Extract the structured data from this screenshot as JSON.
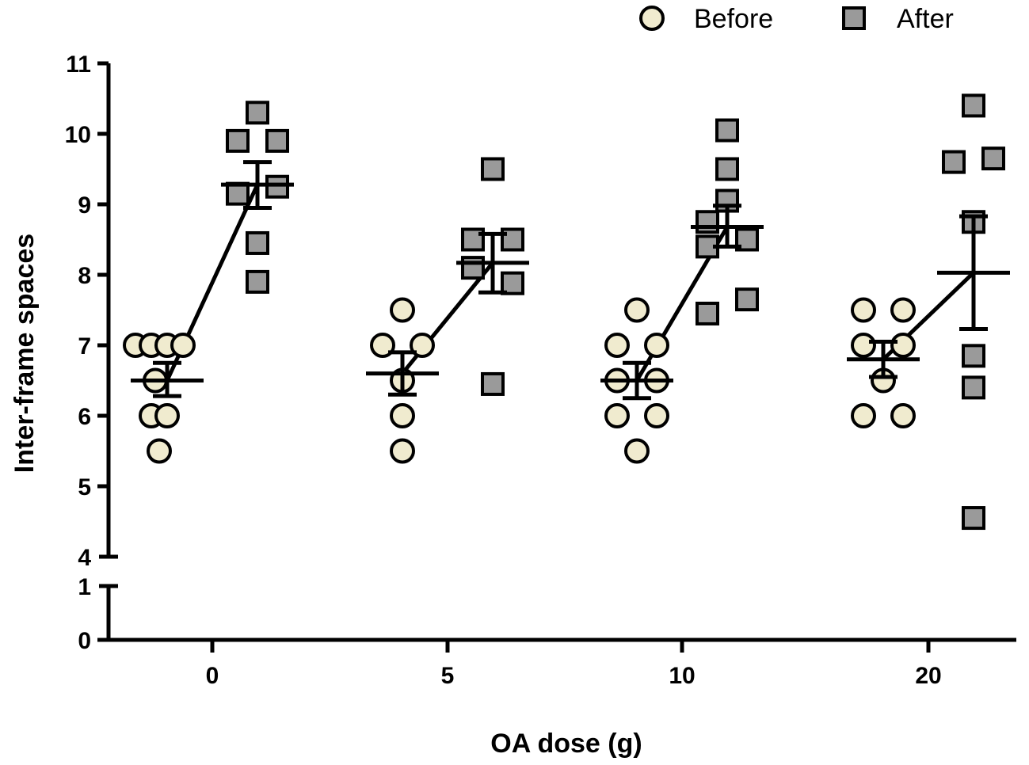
{
  "chart_data": {
    "type": "scatter",
    "xlabel": "OA dose (g)",
    "ylabel": "Inter-frame spaces",
    "categories": [
      "0",
      "5",
      "10",
      "20"
    ],
    "y_ticks_lower": [
      "0",
      "1"
    ],
    "y_ticks_upper": [
      "4",
      "5",
      "6",
      "7",
      "8",
      "9",
      "10",
      "11"
    ],
    "ylim_lower": [
      0,
      1
    ],
    "ylim_upper": [
      4,
      11
    ],
    "colors": {
      "before": "#f0ebcf",
      "after": "#9a9a9a",
      "line": "#000000"
    },
    "legend": {
      "position": "top-right",
      "entries": [
        {
          "key": "before",
          "label": "Before",
          "marker": "circle"
        },
        {
          "key": "after",
          "label": "After",
          "marker": "square"
        }
      ]
    },
    "series": [
      {
        "name": "Before",
        "marker": "circle",
        "groups": [
          {
            "category": "0",
            "mean": 6.5,
            "sem_low": 6.28,
            "sem_high": 6.75,
            "points": [
              {
                "y": 7.0,
                "dx": -0.8
              },
              {
                "y": 7.0,
                "dx": -0.4
              },
              {
                "y": 7.0,
                "dx": 0.0
              },
              {
                "y": 7.0,
                "dx": 0.4
              },
              {
                "y": 6.5,
                "dx": -0.3
              },
              {
                "y": 6.0,
                "dx": -0.4
              },
              {
                "y": 6.0,
                "dx": 0.0
              },
              {
                "y": 5.5,
                "dx": -0.2
              }
            ]
          },
          {
            "category": "5",
            "mean": 6.6,
            "sem_low": 6.3,
            "sem_high": 6.9,
            "points": [
              {
                "y": 7.5,
                "dx": 0.0
              },
              {
                "y": 7.0,
                "dx": -0.5
              },
              {
                "y": 7.0,
                "dx": 0.5
              },
              {
                "y": 6.5,
                "dx": 0.0
              },
              {
                "y": 6.0,
                "dx": 0.0
              },
              {
                "y": 5.5,
                "dx": 0.0
              }
            ]
          },
          {
            "category": "10",
            "mean": 6.5,
            "sem_low": 6.25,
            "sem_high": 6.75,
            "points": [
              {
                "y": 7.5,
                "dx": 0.0
              },
              {
                "y": 7.0,
                "dx": -0.5
              },
              {
                "y": 7.0,
                "dx": 0.5
              },
              {
                "y": 6.5,
                "dx": -0.5
              },
              {
                "y": 6.5,
                "dx": 0.5
              },
              {
                "y": 6.0,
                "dx": -0.5
              },
              {
                "y": 6.0,
                "dx": 0.5
              },
              {
                "y": 5.5,
                "dx": 0.0
              }
            ]
          },
          {
            "category": "20",
            "mean": 6.8,
            "sem_low": 6.55,
            "sem_high": 7.05,
            "points": [
              {
                "y": 7.5,
                "dx": -0.5
              },
              {
                "y": 7.5,
                "dx": 0.5
              },
              {
                "y": 7.0,
                "dx": -0.5
              },
              {
                "y": 7.0,
                "dx": 0.5
              },
              {
                "y": 6.5,
                "dx": 0.0
              },
              {
                "y": 6.0,
                "dx": -0.5
              },
              {
                "y": 6.0,
                "dx": 0.5
              }
            ]
          }
        ]
      },
      {
        "name": "After",
        "marker": "square",
        "groups": [
          {
            "category": "0",
            "mean": 9.28,
            "sem_low": 8.95,
            "sem_high": 9.6,
            "points": [
              {
                "y": 10.3,
                "dx": 0.0
              },
              {
                "y": 9.9,
                "dx": -0.5
              },
              {
                "y": 9.9,
                "dx": 0.5
              },
              {
                "y": 9.25,
                "dx": 0.5
              },
              {
                "y": 9.15,
                "dx": -0.5
              },
              {
                "y": 8.45,
                "dx": 0.0
              },
              {
                "y": 7.9,
                "dx": 0.0
              }
            ]
          },
          {
            "category": "5",
            "mean": 8.17,
            "sem_low": 7.75,
            "sem_high": 8.58,
            "points": [
              {
                "y": 9.5,
                "dx": 0.0
              },
              {
                "y": 8.5,
                "dx": -0.5
              },
              {
                "y": 8.5,
                "dx": 0.5
              },
              {
                "y": 8.1,
                "dx": -0.5
              },
              {
                "y": 7.88,
                "dx": 0.5
              },
              {
                "y": 6.45,
                "dx": 0.0
              }
            ]
          },
          {
            "category": "10",
            "mean": 8.68,
            "sem_low": 8.4,
            "sem_high": 8.98,
            "points": [
              {
                "y": 10.05,
                "dx": 0.0
              },
              {
                "y": 9.5,
                "dx": 0.0
              },
              {
                "y": 9.05,
                "dx": 0.0
              },
              {
                "y": 8.75,
                "dx": -0.5
              },
              {
                "y": 8.5,
                "dx": 0.5
              },
              {
                "y": 8.4,
                "dx": -0.5
              },
              {
                "y": 7.65,
                "dx": 0.5
              },
              {
                "y": 7.45,
                "dx": -0.5
              }
            ]
          },
          {
            "category": "20",
            "mean": 8.03,
            "sem_low": 7.23,
            "sem_high": 8.83,
            "points": [
              {
                "y": 10.4,
                "dx": 0.0
              },
              {
                "y": 9.65,
                "dx": 0.5
              },
              {
                "y": 9.6,
                "dx": -0.5
              },
              {
                "y": 8.75,
                "dx": 0.0
              },
              {
                "y": 6.85,
                "dx": 0.0
              },
              {
                "y": 6.4,
                "dx": 0.0
              },
              {
                "y": 4.55,
                "dx": 0.0
              }
            ]
          }
        ]
      }
    ]
  }
}
